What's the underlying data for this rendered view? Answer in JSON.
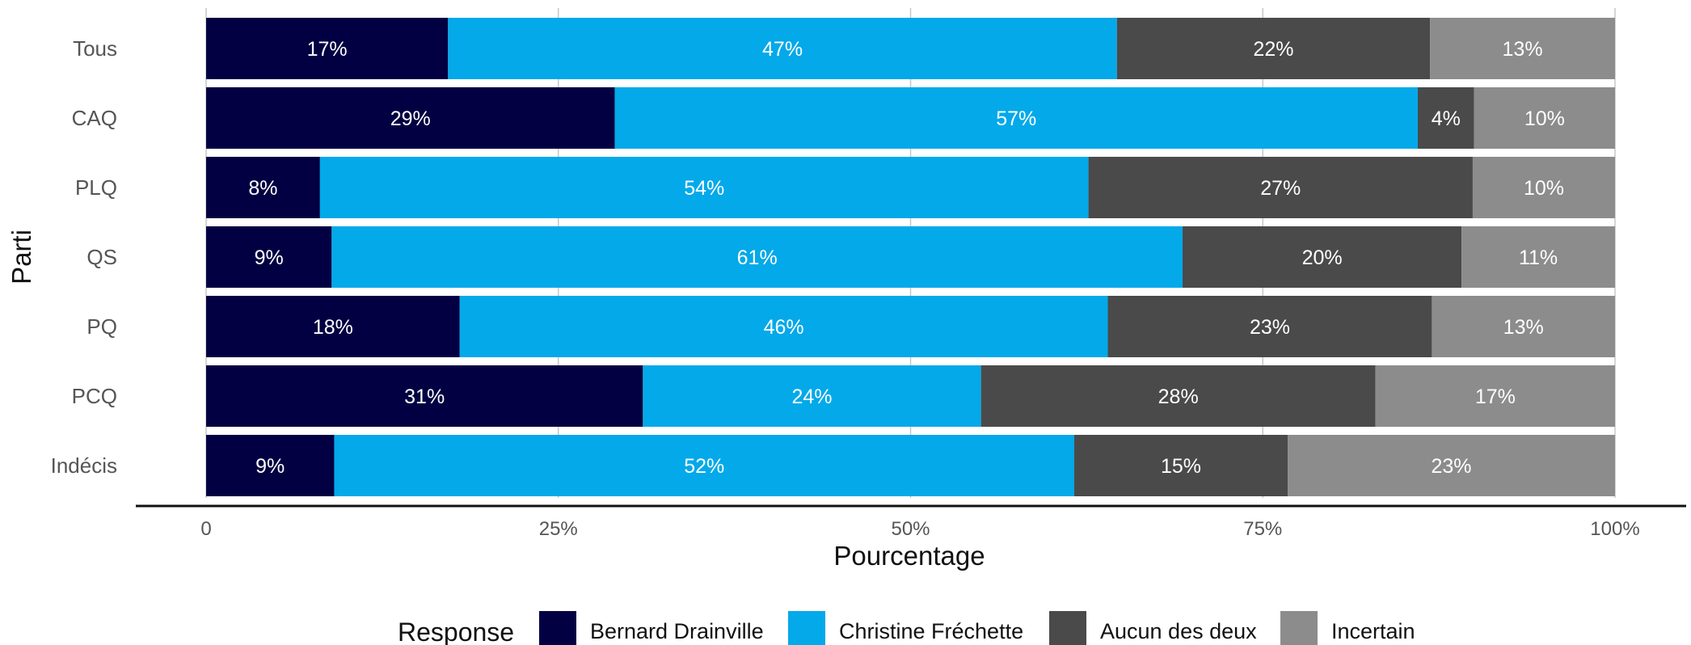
{
  "chart_data": {
    "type": "bar",
    "orientation": "horizontal",
    "stacked": true,
    "xlabel": "Pourcentage",
    "ylabel": "Parti",
    "xlim": [
      0,
      100
    ],
    "x_ticks": [
      "0",
      "25%",
      "50%",
      "75%",
      "100%"
    ],
    "x_tick_values": [
      0,
      25,
      50,
      75,
      100
    ],
    "grid": "vertical",
    "categories": [
      "Tous",
      "CAQ",
      "PLQ",
      "QS",
      "PQ",
      "PCQ",
      "Indécis"
    ],
    "legend": {
      "title": "Response",
      "position": "bottom"
    },
    "series": [
      {
        "name": "Bernard Drainville",
        "color": "#020042",
        "values": [
          17,
          29,
          8,
          9,
          18,
          31,
          9
        ],
        "labels": [
          "17%",
          "29%",
          "8%",
          "9%",
          "18%",
          "31%",
          "9%"
        ]
      },
      {
        "name": "Christine Fréchette",
        "color": "#03a9e9",
        "values": [
          47,
          57,
          54,
          61,
          46,
          24,
          52
        ],
        "labels": [
          "47%",
          "57%",
          "54%",
          "61%",
          "46%",
          "24%",
          "52%"
        ]
      },
      {
        "name": "Aucun des deux",
        "color": "#4a4a4a",
        "values": [
          22,
          4,
          27,
          20,
          23,
          28,
          15
        ],
        "labels": [
          "22%",
          "4%",
          "27%",
          "20%",
          "23%",
          "28%",
          "15%"
        ]
      },
      {
        "name": "Incertain",
        "color": "#8c8c8c",
        "values": [
          13,
          10,
          10,
          11,
          13,
          17,
          23
        ],
        "labels": [
          "13%",
          "10%",
          "10%",
          "11%",
          "13%",
          "17%",
          "23%"
        ]
      }
    ]
  }
}
